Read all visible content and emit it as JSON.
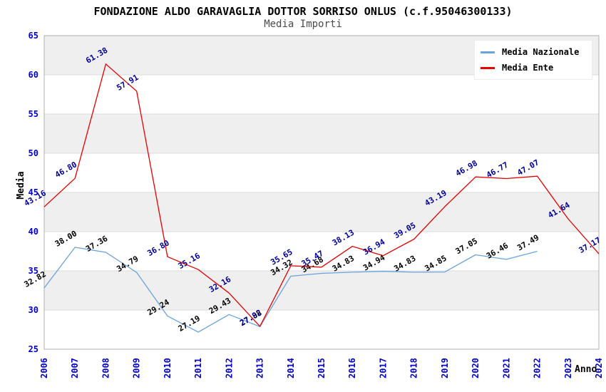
{
  "header": {
    "title": "FONDAZIONE ALDO GARAVAGLIA DOTTOR SORRISO ONLUS (c.f.95046300133)",
    "subtitle": "Media Importi"
  },
  "axes": {
    "y_label": "Media",
    "x_label": "Anno",
    "y_ticks": [
      25,
      30,
      35,
      40,
      45,
      50,
      55,
      60,
      65
    ]
  },
  "legend": {
    "position": "top-right",
    "items": [
      {
        "label": "Media Nazionale"
      },
      {
        "label": "Media Ente"
      }
    ]
  },
  "colors": {
    "tick_label": "#0000CC",
    "plot_border": "#B0B0B0",
    "gridline": "#DBDBDB",
    "band_gray": "#EFEFEF",
    "band_white": "#FFFFFF",
    "title": "#000000",
    "subtitle": "#4A4A4A"
  },
  "chart_data": {
    "type": "line",
    "title": "FONDAZIONE ALDO GARAVAGLIA DOTTOR SORRISO ONLUS (c.f.95046300133)",
    "subtitle": "Media Importi",
    "xlabel": "Anno",
    "ylabel": "Media",
    "ylim": [
      25,
      65
    ],
    "ytick_step": 5,
    "grid": "horizontal-bands",
    "legend_position": "top-right",
    "categories": [
      "2006",
      "2007",
      "2008",
      "2009",
      "2010",
      "2011",
      "2012",
      "2013",
      "2014",
      "2015",
      "2016",
      "2017",
      "2018",
      "2019",
      "2020",
      "2021",
      "2022",
      "2023",
      "2024"
    ],
    "series": [
      {
        "name": "Media Nazionale",
        "color": "#69A3DC",
        "label_color": "#000000",
        "values": [
          32.82,
          38.0,
          37.36,
          34.79,
          29.24,
          27.19,
          29.43,
          27.88,
          34.32,
          34.68,
          34.83,
          34.94,
          34.83,
          34.85,
          37.05,
          36.46,
          37.49,
          null,
          null
        ]
      },
      {
        "name": "Media Ente",
        "color": "#E60000",
        "label_color": "#000099",
        "values": [
          43.16,
          46.8,
          61.38,
          57.91,
          36.8,
          35.16,
          32.16,
          27.92,
          35.65,
          35.47,
          38.13,
          36.94,
          39.05,
          43.19,
          46.98,
          46.77,
          47.07,
          41.64,
          37.17
        ]
      }
    ]
  }
}
